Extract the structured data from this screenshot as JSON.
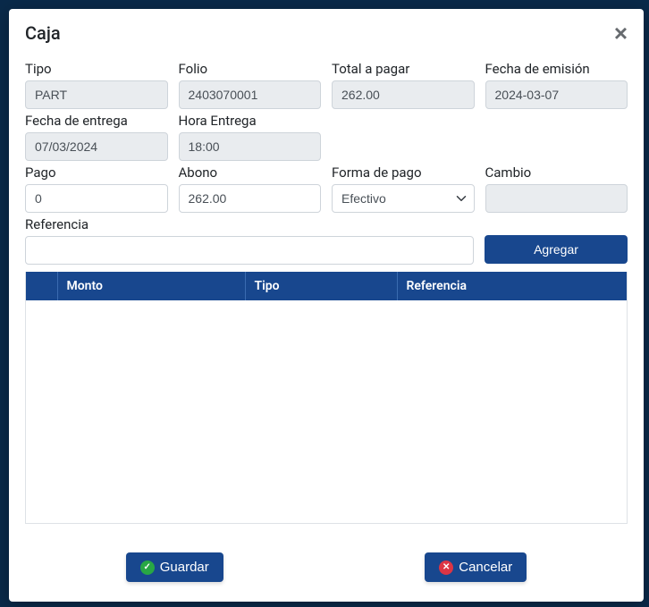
{
  "modal": {
    "title": "Caja"
  },
  "fields": {
    "tipo": {
      "label": "Tipo",
      "value": "PART",
      "readonly": true
    },
    "folio": {
      "label": "Folio",
      "value": "2403070001",
      "readonly": true
    },
    "total": {
      "label": "Total a pagar",
      "value": "262.00",
      "readonly": true
    },
    "emision": {
      "label": "Fecha de emisión",
      "value": "2024-03-07",
      "readonly": true
    },
    "entrega": {
      "label": "Fecha de entrega",
      "value": "07/03/2024",
      "readonly": true
    },
    "hora": {
      "label": "Hora Entrega",
      "value": "18:00",
      "readonly": true
    },
    "pago": {
      "label": "Pago",
      "value": "0",
      "readonly": false
    },
    "abono": {
      "label": "Abono",
      "value": "262.00",
      "readonly": false
    },
    "forma": {
      "label": "Forma de pago",
      "value": "Efectivo"
    },
    "cambio": {
      "label": "Cambio",
      "value": "",
      "readonly": true
    },
    "referencia": {
      "label": "Referencia",
      "value": ""
    }
  },
  "buttons": {
    "agregar": "Agregar",
    "guardar": "Guardar",
    "cancelar": "Cancelar"
  },
  "table": {
    "headers": {
      "monto": "Monto",
      "tipo": "Tipo",
      "referencia": "Referencia"
    }
  },
  "colors": {
    "primary": "#18478e",
    "readonly_bg": "#e9ecef",
    "success": "#28a745",
    "danger": "#dc3545"
  }
}
